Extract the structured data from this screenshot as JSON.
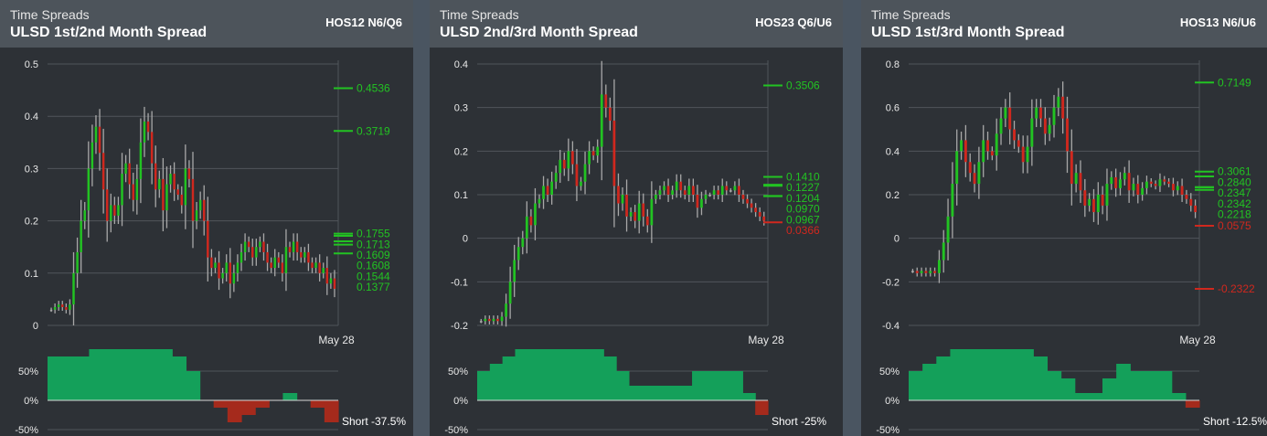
{
  "colors": {
    "up": "#22c322",
    "down": "#d0281e",
    "neutral": "#a8a8a8",
    "bar_pos": "#14a05a",
    "bar_neg": "#a52a1c",
    "grid": "#50555b",
    "axis_text": "#e8e8e8"
  },
  "charts": [
    {
      "supertitle": "Time Spreads",
      "title": "ULSD 1st/2nd Month Spread",
      "code": "HOS12  N6/Q6",
      "chart_data": {
        "type": "candlestick",
        "y_ticks": [
          "0.5",
          "0.4",
          "0.3",
          "0.2",
          "0.1",
          "0"
        ],
        "ylim": [
          0,
          0.5
        ],
        "x_tick_label": "May 28",
        "levels": [
          {
            "label": "0.4536",
            "value": 0.4536,
            "color": "up"
          },
          {
            "label": "0.3719",
            "value": 0.3719,
            "color": "up"
          },
          {
            "label": "0.1755",
            "value": 0.1755,
            "color": "up"
          },
          {
            "label": "0.1713",
            "value": 0.1713,
            "color": "up"
          },
          {
            "label": "0.1609",
            "value": 0.1609,
            "color": "up"
          },
          {
            "label": "0.1608",
            "value": 0.1608,
            "color": "up"
          },
          {
            "label": "0.1544",
            "value": 0.1544,
            "color": "up"
          },
          {
            "label": "0.1377",
            "value": 0.1377,
            "color": "up"
          }
        ],
        "path": [
          0.03,
          0.035,
          0.04,
          0.035,
          0.03,
          0.04,
          0.1,
          0.14,
          0.2,
          0.22,
          0.3,
          0.35,
          0.38,
          0.33,
          0.26,
          0.2,
          0.23,
          0.21,
          0.23,
          0.29,
          0.31,
          0.27,
          0.24,
          0.28,
          0.35,
          0.39,
          0.37,
          0.31,
          0.26,
          0.28,
          0.22,
          0.27,
          0.29,
          0.26,
          0.25,
          0.23,
          0.3,
          0.28,
          0.2,
          0.22,
          0.24,
          0.2,
          0.13,
          0.11,
          0.12,
          0.09,
          0.1,
          0.12,
          0.08,
          0.1,
          0.12,
          0.14,
          0.16,
          0.15,
          0.13,
          0.15,
          0.16,
          0.14,
          0.12,
          0.11,
          0.13,
          0.12,
          0.1,
          0.15,
          0.14,
          0.16,
          0.14,
          0.13,
          0.14,
          0.12,
          0.11,
          0.12,
          0.1,
          0.11,
          0.08,
          0.09,
          0.07
        ],
        "indicator": {
          "yticks": [
            "50%",
            "0%",
            "-50%"
          ],
          "ylim": [
            -0.5,
            0.75
          ],
          "values": [
            0.75,
            0.75,
            0.75,
            0.875,
            0.875,
            0.875,
            0.875,
            0.875,
            0.875,
            0.75,
            0.5,
            0,
            -0.125,
            -0.375,
            -0.25,
            -0.125,
            0,
            0.125,
            0,
            -0.125,
            -0.375
          ],
          "label": "Short -37.5%"
        }
      }
    },
    {
      "supertitle": "Time Spreads",
      "title": "ULSD 2nd/3rd Month Spread",
      "code": "HOS23  Q6/U6",
      "chart_data": {
        "type": "candlestick",
        "y_ticks": [
          "0.4",
          "0.3",
          "0.2",
          "0.1",
          "0",
          "-0.1",
          "-0.2"
        ],
        "ylim": [
          -0.2,
          0.4
        ],
        "x_tick_label": "May 28",
        "levels": [
          {
            "label": "0.3506",
            "value": 0.3506,
            "color": "up"
          },
          {
            "label": "0.1410",
            "value": 0.141,
            "color": "up"
          },
          {
            "label": "0.1227",
            "value": 0.1227,
            "color": "up"
          },
          {
            "label": "0.1204",
            "value": 0.1204,
            "color": "up"
          },
          {
            "label": "0.0970",
            "value": 0.097,
            "color": "up"
          },
          {
            "label": "0.0967",
            "value": 0.0967,
            "color": "up"
          },
          {
            "label": "0.0366",
            "value": 0.0366,
            "color": "down"
          }
        ],
        "path": [
          -0.19,
          -0.185,
          -0.19,
          -0.185,
          -0.19,
          -0.18,
          -0.15,
          -0.1,
          -0.05,
          -0.02,
          0.0,
          0.05,
          0.03,
          0.08,
          0.09,
          0.12,
          0.1,
          0.13,
          0.15,
          0.18,
          0.16,
          0.2,
          0.17,
          0.12,
          0.13,
          0.17,
          0.2,
          0.19,
          0.21,
          0.33,
          0.3,
          0.27,
          0.12,
          0.08,
          0.1,
          0.05,
          0.06,
          0.04,
          0.08,
          0.05,
          0.03,
          0.09,
          0.1,
          0.11,
          0.12,
          0.1,
          0.11,
          0.13,
          0.11,
          0.1,
          0.12,
          0.1,
          0.07,
          0.09,
          0.1,
          0.1,
          0.11,
          0.1,
          0.12,
          0.11,
          0.11,
          0.12,
          0.1,
          0.09,
          0.08,
          0.07,
          0.06,
          0.05,
          0.04
        ],
        "indicator": {
          "yticks": [
            "50%",
            "0%",
            "-50%"
          ],
          "ylim": [
            -0.5,
            0.75
          ],
          "values": [
            0.5,
            0.625,
            0.75,
            0.875,
            0.875,
            0.875,
            0.875,
            0.875,
            0.875,
            0.875,
            0.75,
            0.5,
            0.25,
            0.25,
            0.25,
            0.25,
            0.25,
            0.5,
            0.5,
            0.5,
            0.5,
            0.125,
            -0.25
          ],
          "label": "Short -25%"
        }
      }
    },
    {
      "supertitle": "Time Spreads",
      "title": "ULSD 1st/3rd Month Spread",
      "code": "HOS13  N6/U6",
      "chart_data": {
        "type": "candlestick",
        "y_ticks": [
          "0.8",
          "0.6",
          "0.4",
          "0.2",
          "0",
          "-0.2",
          "-0.4"
        ],
        "ylim": [
          -0.4,
          0.8
        ],
        "x_tick_label": "May 28",
        "levels": [
          {
            "label": "0.7149",
            "value": 0.7149,
            "color": "up"
          },
          {
            "label": "0.3061",
            "value": 0.3061,
            "color": "up"
          },
          {
            "label": "0.2840",
            "value": 0.284,
            "color": "up"
          },
          {
            "label": "0.2347",
            "value": 0.2347,
            "color": "up"
          },
          {
            "label": "0.2342",
            "value": 0.2342,
            "color": "up"
          },
          {
            "label": "0.2218",
            "value": 0.2218,
            "color": "up"
          },
          {
            "label": "0.0575",
            "value": 0.0575,
            "color": "down"
          },
          {
            "label": "-0.2322",
            "value": -0.2322,
            "color": "down"
          }
        ],
        "path": [
          -0.15,
          -0.16,
          -0.15,
          -0.16,
          -0.15,
          -0.16,
          -0.1,
          -0.02,
          0.1,
          0.25,
          0.4,
          0.45,
          0.35,
          0.3,
          0.25,
          0.35,
          0.45,
          0.4,
          0.38,
          0.48,
          0.55,
          0.6,
          0.5,
          0.45,
          0.42,
          0.35,
          0.42,
          0.55,
          0.6,
          0.55,
          0.48,
          0.52,
          0.6,
          0.65,
          0.55,
          0.4,
          0.25,
          0.3,
          0.22,
          0.15,
          0.18,
          0.12,
          0.2,
          0.15,
          0.25,
          0.28,
          0.23,
          0.27,
          0.3,
          0.22,
          0.25,
          0.2,
          0.23,
          0.26,
          0.25,
          0.24,
          0.27,
          0.26,
          0.25,
          0.22,
          0.24,
          0.2,
          0.18,
          0.15,
          0.12
        ],
        "indicator": {
          "yticks": [
            "50%",
            "0%",
            "-50%"
          ],
          "ylim": [
            -0.5,
            0.75
          ],
          "values": [
            0.5,
            0.625,
            0.75,
            0.875,
            0.875,
            0.875,
            0.875,
            0.875,
            0.875,
            0.75,
            0.5,
            0.375,
            0.125,
            0.125,
            0.375,
            0.625,
            0.5,
            0.5,
            0.5,
            0.125,
            -0.125
          ],
          "label": "Short -12.5%"
        }
      }
    }
  ]
}
